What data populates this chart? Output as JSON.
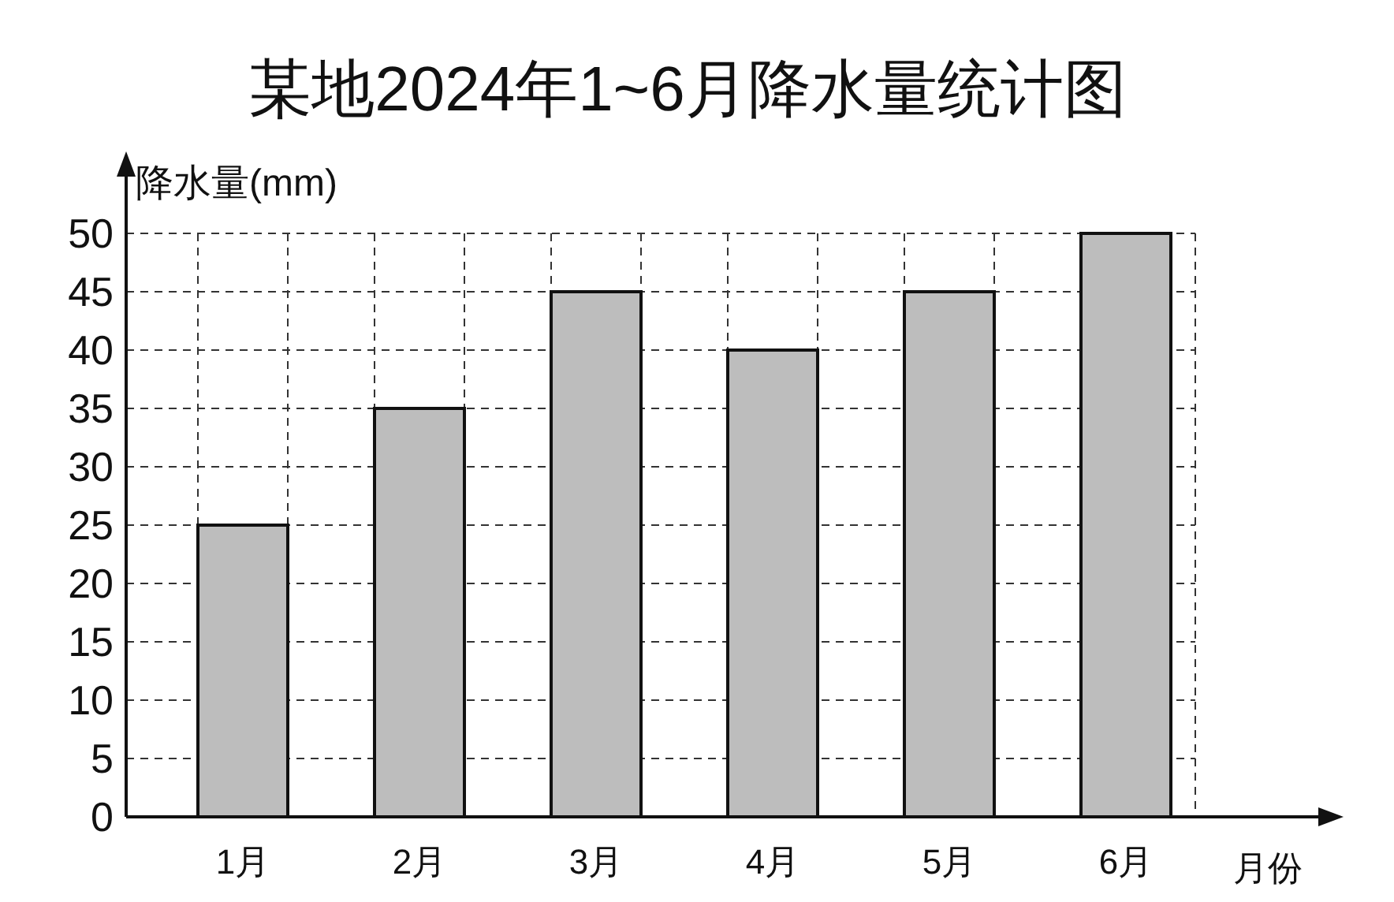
{
  "chart_data": {
    "type": "bar",
    "title": "某地2024年1~6月降水量统计图",
    "xlabel": "月份",
    "ylabel": "降水量(mm)",
    "categories": [
      "1月",
      "2月",
      "3月",
      "4月",
      "5月",
      "6月"
    ],
    "values": [
      25,
      35,
      45,
      40,
      45,
      50
    ],
    "color": "#bdbdbd",
    "ylim": [
      0,
      50
    ],
    "yticks": [
      0,
      5,
      10,
      15,
      20,
      25,
      30,
      35,
      40,
      45,
      50
    ],
    "grid": true,
    "line_style": "dashed"
  }
}
